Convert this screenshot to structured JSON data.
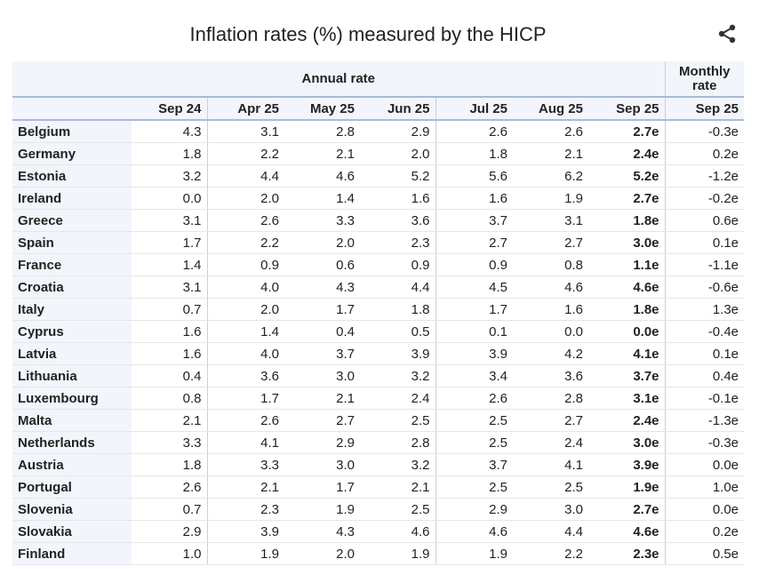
{
  "title": "Inflation rates (%) measured by the HICP",
  "table": {
    "group_headers": [
      "Annual rate",
      "Monthly rate"
    ],
    "columns": [
      "Sep 24",
      "Apr 25",
      "May 25",
      "Jun 25",
      "Jul 25",
      "Aug 25",
      "Sep 25",
      "Sep 25"
    ],
    "rows": [
      {
        "country": "Belgium",
        "values": [
          "4.3",
          "3.1",
          "2.8",
          "2.9",
          "2.6",
          "2.6",
          "2.7e",
          "-0.3e"
        ]
      },
      {
        "country": "Germany",
        "values": [
          "1.8",
          "2.2",
          "2.1",
          "2.0",
          "1.8",
          "2.1",
          "2.4e",
          "0.2e"
        ]
      },
      {
        "country": "Estonia",
        "values": [
          "3.2",
          "4.4",
          "4.6",
          "5.2",
          "5.6",
          "6.2",
          "5.2e",
          "-1.2e"
        ]
      },
      {
        "country": "Ireland",
        "values": [
          "0.0",
          "2.0",
          "1.4",
          "1.6",
          "1.6",
          "1.9",
          "2.7e",
          "-0.2e"
        ]
      },
      {
        "country": "Greece",
        "values": [
          "3.1",
          "2.6",
          "3.3",
          "3.6",
          "3.7",
          "3.1",
          "1.8e",
          "0.6e"
        ]
      },
      {
        "country": "Spain",
        "values": [
          "1.7",
          "2.2",
          "2.0",
          "2.3",
          "2.7",
          "2.7",
          "3.0e",
          "0.1e"
        ]
      },
      {
        "country": "France",
        "values": [
          "1.4",
          "0.9",
          "0.6",
          "0.9",
          "0.9",
          "0.8",
          "1.1e",
          "-1.1e"
        ]
      },
      {
        "country": "Croatia",
        "values": [
          "3.1",
          "4.0",
          "4.3",
          "4.4",
          "4.5",
          "4.6",
          "4.6e",
          "-0.6e"
        ]
      },
      {
        "country": "Italy",
        "values": [
          "0.7",
          "2.0",
          "1.7",
          "1.8",
          "1.7",
          "1.6",
          "1.8e",
          "1.3e"
        ]
      },
      {
        "country": "Cyprus",
        "values": [
          "1.6",
          "1.4",
          "0.4",
          "0.5",
          "0.1",
          "0.0",
          "0.0e",
          "-0.4e"
        ]
      },
      {
        "country": "Latvia",
        "values": [
          "1.6",
          "4.0",
          "3.7",
          "3.9",
          "3.9",
          "4.2",
          "4.1e",
          "0.1e"
        ]
      },
      {
        "country": "Lithuania",
        "values": [
          "0.4",
          "3.6",
          "3.0",
          "3.2",
          "3.4",
          "3.6",
          "3.7e",
          "0.4e"
        ]
      },
      {
        "country": "Luxembourg",
        "values": [
          "0.8",
          "1.7",
          "2.1",
          "2.4",
          "2.6",
          "2.8",
          "3.1e",
          "-0.1e"
        ]
      },
      {
        "country": "Malta",
        "values": [
          "2.1",
          "2.6",
          "2.7",
          "2.5",
          "2.5",
          "2.7",
          "2.4e",
          "-1.3e"
        ]
      },
      {
        "country": "Netherlands",
        "values": [
          "3.3",
          "4.1",
          "2.9",
          "2.8",
          "2.5",
          "2.4",
          "3.0e",
          "-0.3e"
        ]
      },
      {
        "country": "Austria",
        "values": [
          "1.8",
          "3.3",
          "3.0",
          "3.2",
          "3.7",
          "4.1",
          "3.9e",
          "0.0e"
        ]
      },
      {
        "country": "Portugal",
        "values": [
          "2.6",
          "2.1",
          "1.7",
          "2.1",
          "2.5",
          "2.5",
          "1.9e",
          "1.0e"
        ]
      },
      {
        "country": "Slovenia",
        "values": [
          "0.7",
          "2.3",
          "1.9",
          "2.5",
          "2.9",
          "3.0",
          "2.7e",
          "0.0e"
        ]
      },
      {
        "country": "Slovakia",
        "values": [
          "2.9",
          "3.9",
          "4.3",
          "4.6",
          "4.6",
          "4.4",
          "4.6e",
          "0.2e"
        ]
      },
      {
        "country": "Finland",
        "values": [
          "1.0",
          "1.9",
          "2.0",
          "1.9",
          "1.9",
          "2.2",
          "2.3e",
          "0.5e"
        ]
      }
    ]
  }
}
